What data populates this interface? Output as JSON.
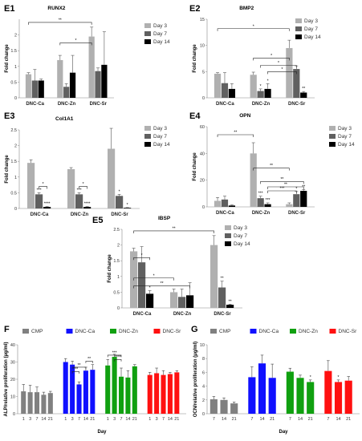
{
  "chart_data": [
    {
      "id": "E1",
      "type": "bar",
      "title": "RUNX2",
      "ylabel": "Fold change",
      "categories": [
        "DNC-Ca",
        "DNC-Zn",
        "DNC-Sr"
      ],
      "ylim": [
        0,
        2.5
      ],
      "yticks": [
        0,
        0.5,
        1,
        1.5,
        2
      ],
      "legend_position": "right",
      "series": [
        {
          "name": "Day 3",
          "color": "#b0b0b0",
          "values": [
            0.75,
            1.2,
            1.95
          ],
          "errors": [
            0.05,
            0.15,
            0.3
          ]
        },
        {
          "name": "Day 7",
          "color": "#606060",
          "values": [
            0.55,
            0.35,
            0.85
          ],
          "errors": [
            0.35,
            0.1,
            0.1
          ]
        },
        {
          "name": "Day 14",
          "color": "#000000",
          "values": [
            0.55,
            0.8,
            1.05
          ],
          "errors": [
            0.05,
            0.55,
            1.05
          ]
        }
      ],
      "brackets": [
        {
          "from": [
            0,
            0
          ],
          "to": [
            2,
            0
          ],
          "y": 2.4,
          "label": "**"
        },
        {
          "from": [
            1,
            0
          ],
          "to": [
            2,
            0
          ],
          "y": 1.75,
          "label": "*"
        }
      ],
      "annotations": []
    },
    {
      "id": "E2",
      "type": "bar",
      "title": "BMP2",
      "ylabel": "Fold change",
      "categories": [
        "DNC-Ca",
        "DNC-Zn",
        "DNC-Sr"
      ],
      "ylim": [
        0,
        15
      ],
      "yticks": [
        0,
        5,
        10,
        15
      ],
      "legend_position": "right",
      "series": [
        {
          "name": "Day 3",
          "color": "#b0b0b0",
          "values": [
            4.6,
            4.4,
            9.5
          ],
          "errors": [
            0.2,
            0.5,
            1.5
          ]
        },
        {
          "name": "Day 7",
          "color": "#606060",
          "values": [
            2.8,
            1.3,
            5.5
          ],
          "errors": [
            2.0,
            0.4,
            0.6
          ]
        },
        {
          "name": "Day 14",
          "color": "#000000",
          "values": [
            1.7,
            1.7,
            1.0
          ],
          "errors": [
            1.0,
            1.0,
            0.2
          ]
        }
      ],
      "brackets": [
        {
          "from": [
            0,
            0
          ],
          "to": [
            2,
            0
          ],
          "y": 13.2,
          "label": "*"
        },
        {
          "from": [
            1,
            0
          ],
          "to": [
            2,
            0
          ],
          "y": 7.6,
          "label": "*"
        },
        {
          "from": [
            1,
            1
          ],
          "to": [
            2,
            1
          ],
          "y": 6.2,
          "label": "*"
        },
        {
          "from": [
            1,
            2
          ],
          "to": [
            2,
            1
          ],
          "y": 5.0,
          "label": "*"
        }
      ],
      "annotations": [
        {
          "cat": 1,
          "series": 1,
          "label": "*"
        },
        {
          "cat": 1,
          "series": 2,
          "label": "*"
        },
        {
          "cat": 2,
          "series": 2,
          "label": "**"
        }
      ]
    },
    {
      "id": "E3",
      "type": "bar",
      "title": "Col1A1",
      "ylabel": "Fold change",
      "categories": [
        "DNC-Ca",
        "DNC-Zn",
        "DNC-Sr"
      ],
      "ylim": [
        0,
        2.5
      ],
      "yticks": [
        0,
        0.5,
        1,
        1.5,
        2,
        2.5
      ],
      "legend_position": "right",
      "series": [
        {
          "name": "Day 3",
          "color": "#b0b0b0",
          "values": [
            1.45,
            1.25,
            1.9
          ],
          "errors": [
            0.1,
            0.05,
            0.65
          ]
        },
        {
          "name": "Day 7",
          "color": "#606060",
          "values": [
            0.45,
            0.45,
            0.4
          ],
          "errors": [
            0.05,
            0.05,
            0.05
          ]
        },
        {
          "name": "Day 14",
          "color": "#000000",
          "values": [
            0.05,
            0.05,
            0.02
          ],
          "errors": [
            0.01,
            0.01,
            0.01
          ]
        }
      ],
      "brackets": [
        {
          "from": [
            0,
            1
          ],
          "to": [
            0,
            2
          ],
          "y": 0.7,
          "label": "*"
        },
        {
          "from": [
            1,
            1
          ],
          "to": [
            1,
            2
          ],
          "y": 0.7,
          "label": "*"
        }
      ],
      "annotations": [
        {
          "cat": 0,
          "series": 1,
          "label": "***"
        },
        {
          "cat": 0,
          "series": 2,
          "label": "****"
        },
        {
          "cat": 1,
          "series": 1,
          "label": "***"
        },
        {
          "cat": 1,
          "series": 2,
          "label": "****"
        },
        {
          "cat": 2,
          "series": 1,
          "label": "*"
        },
        {
          "cat": 2,
          "series": 2,
          "label": "*"
        }
      ]
    },
    {
      "id": "E4",
      "type": "bar",
      "title": "OPN",
      "ylabel": "Fold change",
      "categories": [
        "DNC-Ca",
        "DNC-Zn",
        "DNC-Sr"
      ],
      "ylim": [
        0,
        60
      ],
      "yticks": [
        0,
        20,
        40,
        60
      ],
      "legend_position": "right",
      "series": [
        {
          "name": "Day 3",
          "color": "#b0b0b0",
          "values": [
            4.5,
            40,
            2
          ],
          "errors": [
            2.5,
            8,
            1
          ]
        },
        {
          "name": "Day 7",
          "color": "#606060",
          "values": [
            5.5,
            6.5,
            9.5
          ],
          "errors": [
            2.5,
            1.5,
            2
          ]
        },
        {
          "name": "Day 14",
          "color": "#000000",
          "values": [
            1,
            2,
            12
          ],
          "errors": [
            0.5,
            1,
            1
          ]
        }
      ],
      "brackets": [
        {
          "from": [
            0,
            0
          ],
          "to": [
            1,
            0
          ],
          "y": 54,
          "label": "**"
        },
        {
          "from": [
            1,
            1
          ],
          "to": [
            2,
            2
          ],
          "y": 19,
          "label": "**"
        },
        {
          "from": [
            1,
            2
          ],
          "to": [
            2,
            2
          ],
          "y": 15,
          "label": "**"
        },
        {
          "from": [
            1,
            2
          ],
          "to": [
            2,
            1
          ],
          "y": 12,
          "label": "***"
        },
        {
          "from": [
            1,
            0
          ],
          "to": [
            2,
            0
          ],
          "y": 29,
          "label": "**"
        }
      ],
      "annotations": [
        {
          "cat": 1,
          "series": 1,
          "label": "***"
        },
        {
          "cat": 1,
          "series": 2,
          "label": "***"
        },
        {
          "cat": 2,
          "series": 1,
          "label": "*"
        },
        {
          "cat": 2,
          "series": 2,
          "label": "**"
        }
      ]
    },
    {
      "id": "E5",
      "type": "bar",
      "title": "IBSP",
      "ylabel": "Fold change",
      "categories": [
        "DNC-Ca",
        "DNC-Zn",
        "DNC-Sr"
      ],
      "ylim": [
        0,
        2.5
      ],
      "yticks": [
        0,
        0.5,
        1,
        1.5,
        2,
        2.5
      ],
      "legend_position": "right",
      "series": [
        {
          "name": "Day 3",
          "color": "#b0b0b0",
          "values": [
            1.8,
            0.5,
            2.0
          ],
          "errors": [
            0.1,
            0.1,
            0.3
          ]
        },
        {
          "name": "Day 7",
          "color": "#606060",
          "values": [
            1.45,
            0.35,
            0.65
          ],
          "errors": [
            0.5,
            0.25,
            0.2
          ]
        },
        {
          "name": "Day 14",
          "color": "#000000",
          "values": [
            0.45,
            0.4,
            0.1
          ],
          "errors": [
            0.1,
            0.4,
            0.02
          ]
        }
      ],
      "brackets": [
        {
          "from": [
            0,
            0
          ],
          "to": [
            2,
            0
          ],
          "y": 2.45,
          "label": "**"
        },
        {
          "from": [
            0,
            0
          ],
          "to": [
            0,
            2
          ],
          "y": 1.6,
          "label": "*"
        },
        {
          "from": [
            0,
            0
          ],
          "to": [
            1,
            0
          ],
          "y": 0.95,
          "label": "*"
        },
        {
          "from": [
            0,
            0
          ],
          "to": [
            1,
            2
          ],
          "y": 0.7,
          "label": "**"
        }
      ],
      "annotations": [
        {
          "cat": 0,
          "series": 2,
          "label": "*"
        },
        {
          "cat": 2,
          "series": 1,
          "label": "**"
        },
        {
          "cat": 2,
          "series": 2,
          "label": "**"
        }
      ]
    },
    {
      "id": "F",
      "type": "bar",
      "title": "",
      "ylabel": "ALP/relative proliferation (μg/ml)",
      "xlabel": "Day",
      "ylim": [
        0,
        40
      ],
      "yticks": [
        0,
        10,
        20,
        30,
        40
      ],
      "legend_position": "top",
      "groups": [
        {
          "name": "CMP",
          "color": "#808080",
          "days": [
            "1",
            "3",
            "7",
            "14",
            "21"
          ],
          "values": [
            13,
            12.5,
            12.5,
            11,
            12
          ],
          "errors": [
            4,
            4,
            3,
            1.5,
            1
          ]
        },
        {
          "name": "DNC-Ca",
          "color": "#1010ff",
          "days": [
            "1",
            "3",
            "7",
            "14",
            "21"
          ],
          "values": [
            30,
            28.5,
            17,
            25,
            25.5
          ],
          "errors": [
            2,
            2,
            1.5,
            2,
            3
          ]
        },
        {
          "name": "DNC-Zn",
          "color": "#10a010",
          "days": [
            "1",
            "3",
            "7",
            "14",
            "21"
          ],
          "values": [
            28,
            33,
            21.5,
            21,
            27.5
          ],
          "errors": [
            3.5,
            1.5,
            5,
            4,
            1
          ]
        },
        {
          "name": "DNC-Sr",
          "color": "#ff1010",
          "days": [
            "1",
            "3",
            "7",
            "14",
            "21"
          ],
          "values": [
            22.5,
            23.5,
            22.5,
            23,
            24
          ],
          "errors": [
            1.5,
            3,
            2.5,
            1,
            1
          ]
        }
      ],
      "brackets": [
        {
          "group": 1,
          "from": 1,
          "to": 2,
          "y": 24.5,
          "label": "***"
        },
        {
          "group": 1,
          "from": 1,
          "to": 3,
          "y": 27,
          "label": "**"
        },
        {
          "group": 1,
          "from": 3,
          "to": 4,
          "y": 30.5,
          "label": "**"
        },
        {
          "group": 2,
          "from": 0,
          "to": 2,
          "y": 34,
          "label": "***"
        },
        {
          "group": 2,
          "from": 1,
          "to": 2,
          "y": 31.5,
          "label": "****"
        }
      ]
    },
    {
      "id": "G",
      "type": "bar",
      "title": "",
      "ylabel": "OCN/relative proliferation (μg/ml)",
      "xlabel": "Day",
      "ylim": [
        0,
        10
      ],
      "yticks": [
        0,
        2,
        4,
        6,
        8,
        10
      ],
      "legend_position": "top",
      "groups": [
        {
          "name": "CMP",
          "color": "#808080",
          "days": [
            "7",
            "14",
            "21"
          ],
          "values": [
            2.1,
            2.0,
            1.5
          ],
          "errors": [
            0.4,
            0.3,
            0.2
          ]
        },
        {
          "name": "DNC-Ca",
          "color": "#1010ff",
          "days": [
            "7",
            "14",
            "21"
          ],
          "values": [
            5.3,
            7.3,
            5.2
          ],
          "errors": [
            1.5,
            1.2,
            2.0
          ]
        },
        {
          "name": "DNC-Zn",
          "color": "#10a010",
          "days": [
            "7",
            "14",
            "21"
          ],
          "values": [
            6.1,
            5.2,
            4.6
          ],
          "errors": [
            0.5,
            0.4,
            0.3
          ]
        },
        {
          "name": "DNC-Sr",
          "color": "#ff1010",
          "days": [
            "7",
            "14",
            "21"
          ],
          "values": [
            6.2,
            4.6,
            4.8
          ],
          "errors": [
            1.5,
            0.3,
            0.6
          ]
        }
      ],
      "brackets": [],
      "annotations": [
        {
          "group": 2,
          "bar": 2,
          "label": "*"
        },
        {
          "group": 3,
          "bar": 1,
          "label": "*"
        }
      ]
    }
  ]
}
